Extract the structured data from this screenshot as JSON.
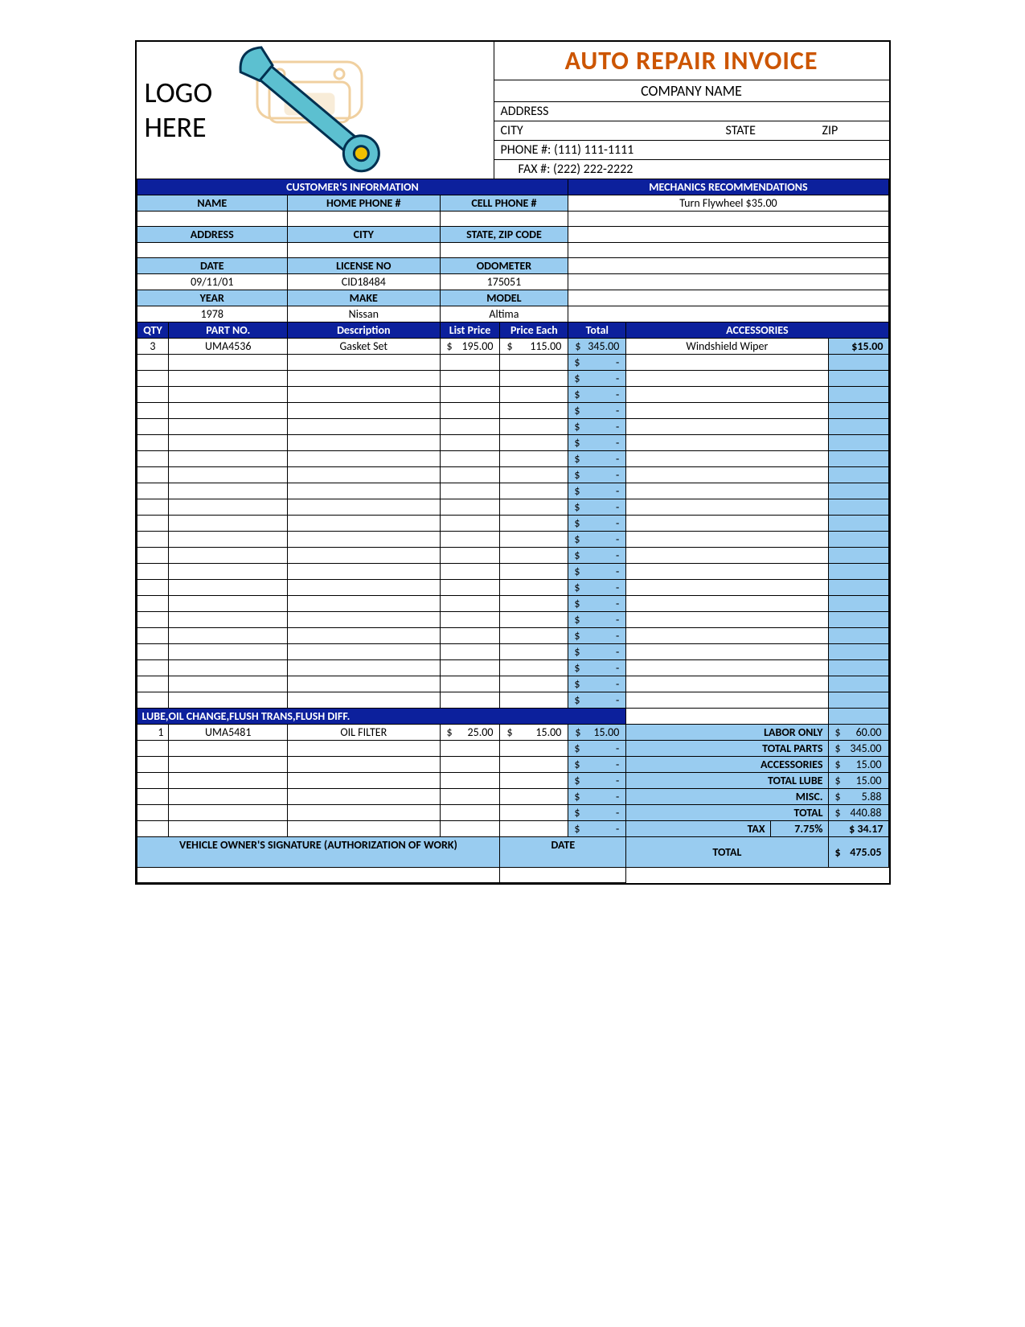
{
  "header": {
    "logo_text_line1": "LOGO",
    "logo_text_line2": "HERE",
    "title": "AUTO REPAIR INVOICE",
    "company_name": "COMPANY NAME",
    "address_label": "ADDRESS",
    "city_label": "CITY",
    "state_label": "STATE",
    "zip_label": "ZIP",
    "phone_label": "PHONE #:",
    "phone": "(111) 111-1111",
    "fax_label": "FAX #:",
    "fax": "(222) 222-2222"
  },
  "section_headers": {
    "customer_info": "CUSTOMER'S INFORMATION",
    "mechanics_rec": "MECHANICS RECOMMENDATIONS",
    "name": "NAME",
    "home_phone": "HOME PHONE #",
    "cell_phone": "CELL PHONE #",
    "address": "ADDRESS",
    "city": "CITY",
    "state_zip": "STATE, ZIP CODE",
    "date": "DATE",
    "license": "LICENSE NO",
    "odometer": "ODOMETER",
    "year": "YEAR",
    "make": "MAKE",
    "model": "MODEL"
  },
  "mechanics_rec_value": "Turn Flywheel  $35.00",
  "customer": {
    "date": "09/11/01",
    "license": "CID18484",
    "odometer": "175051",
    "year": "1978",
    "make": "Nissan",
    "model": "Altima"
  },
  "parts_headers": {
    "qty": "QTY",
    "partno": "PART NO.",
    "description": "Description",
    "list_price": "List Price",
    "price_each": "Price Each",
    "total": "Total",
    "accessories": "ACCESSORIES"
  },
  "parts_row1": {
    "qty": "3",
    "partno": "UMA4536",
    "description": "Gasket Set",
    "list_price": "195.00",
    "price_each": "115.00",
    "total": "345.00"
  },
  "accessory_row1": {
    "name": "Windshield Wiper",
    "price": "$15.00"
  },
  "empty_rows": 22,
  "lube_header": "LUBE,OIL CHANGE,FLUSH TRANS,FLUSH DIFF.",
  "lube_row1": {
    "qty": "1",
    "partno": "UMA5481",
    "description": "OIL FILTER",
    "list_price": "25.00",
    "price_each": "15.00",
    "total": "15.00"
  },
  "summary": {
    "labor_only": {
      "label": "LABOR ONLY",
      "value": "60.00"
    },
    "total_parts": {
      "label": "TOTAL PARTS",
      "value": "345.00"
    },
    "accessories": {
      "label": "ACCESSORIES",
      "value": "15.00"
    },
    "total_lube": {
      "label": "TOTAL LUBE",
      "value": "15.00"
    },
    "misc": {
      "label": "MISC.",
      "value": "5.88"
    },
    "total": {
      "label": "TOTAL",
      "value": "440.88"
    },
    "tax": {
      "label": "TAX",
      "rate": "7.75%",
      "value": "$ 34.17"
    },
    "grand_total": {
      "label": "TOTAL",
      "value": "475.05"
    }
  },
  "signature": {
    "label": "VEHICLE OWNER'S SIGNATURE (AUTHORIZATION OF WORK)",
    "date_label": "DATE"
  },
  "colors": {
    "title_color": "#cc5500",
    "dark_blue": "#0c209c",
    "light_blue": "#99ccf0",
    "border": "#000000"
  }
}
